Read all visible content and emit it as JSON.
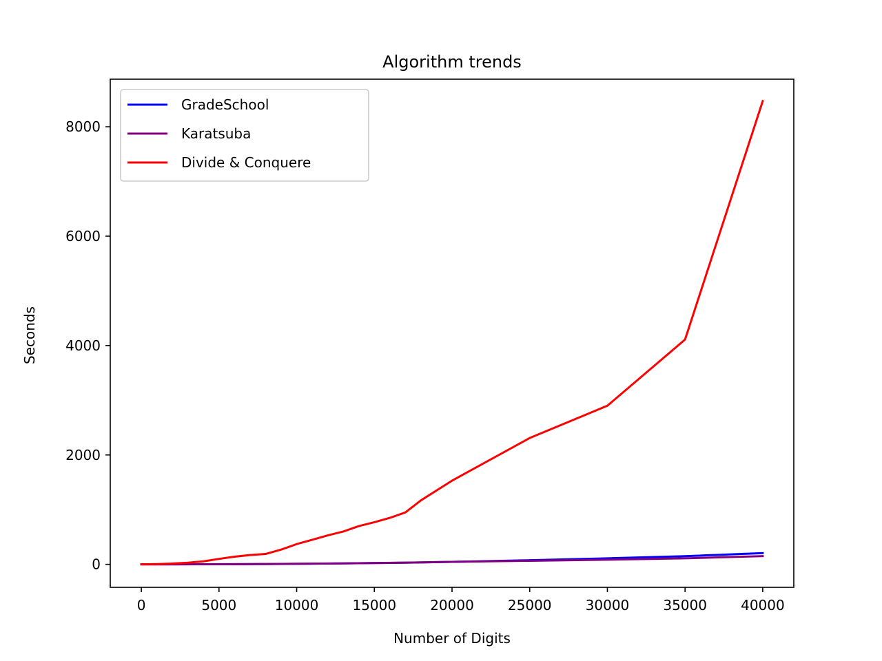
{
  "chart_data": {
    "type": "line",
    "title": "Algorithm trends",
    "xlabel": "Number of Digits",
    "ylabel": "Seconds",
    "xlim": [
      -2000,
      42000
    ],
    "ylim": [
      -420,
      8870
    ],
    "xticks": [
      0,
      5000,
      10000,
      15000,
      20000,
      25000,
      30000,
      35000,
      40000
    ],
    "yticks": [
      0,
      2000,
      4000,
      6000,
      8000
    ],
    "xtick_labels": [
      "0",
      "5000",
      "10000",
      "15000",
      "20000",
      "25000",
      "30000",
      "35000",
      "40000"
    ],
    "ytick_labels": [
      "0",
      "2000",
      "4000",
      "6000",
      "8000"
    ],
    "grid": false,
    "legend_position": "top-left",
    "series": [
      {
        "name": "GradeSchool",
        "color": "#0000ff",
        "x": [
          0,
          1000,
          2000,
          4000,
          6000,
          8000,
          10000,
          13000,
          17000,
          20000,
          25000,
          30000,
          35000,
          40000
        ],
        "values": [
          0,
          0,
          0,
          1,
          3,
          5,
          10,
          17,
          30,
          45,
          75,
          110,
          150,
          205
        ]
      },
      {
        "name": "Karatsuba",
        "color": "#800080",
        "x": [
          0,
          1000,
          2000,
          4000,
          6000,
          8000,
          10000,
          13000,
          17000,
          20000,
          25000,
          30000,
          35000,
          40000
        ],
        "values": [
          0,
          0,
          0,
          1,
          3,
          6,
          11,
          18,
          32,
          45,
          65,
          85,
          110,
          150
        ]
      },
      {
        "name": "Divide & Conquere",
        "color": "#ff0000",
        "x": [
          0,
          1000,
          2000,
          3000,
          4000,
          5000,
          6000,
          7000,
          8000,
          9000,
          10000,
          11000,
          12000,
          13000,
          14000,
          15000,
          16000,
          17000,
          18000,
          20000,
          25000,
          30000,
          35000,
          40000
        ],
        "values": [
          0,
          5,
          15,
          30,
          55,
          100,
          140,
          170,
          190,
          270,
          370,
          450,
          530,
          600,
          700,
          770,
          850,
          950,
          1170,
          1530,
          2310,
          2900,
          4110,
          8470
        ]
      }
    ]
  }
}
